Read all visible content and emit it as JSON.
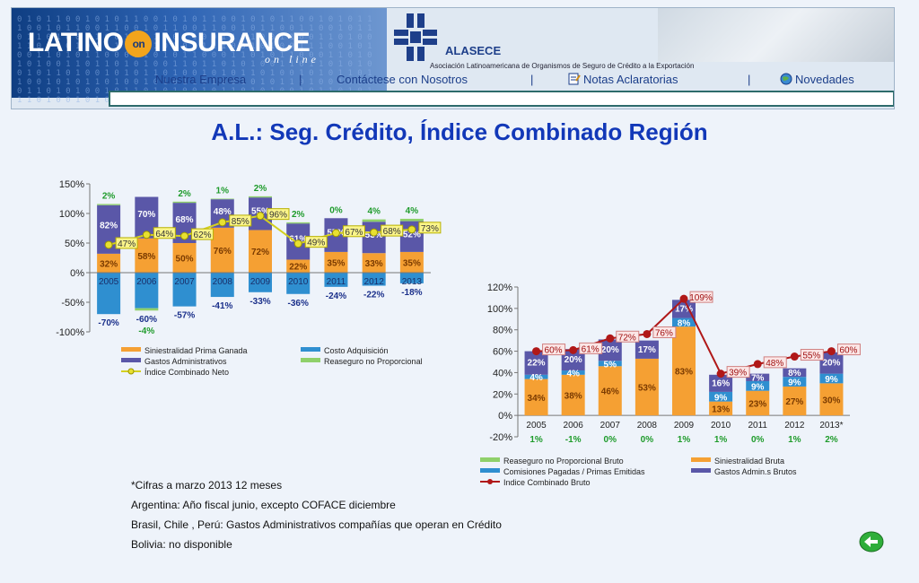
{
  "header": {
    "logo_main_1": "LATINO",
    "logo_on": "on",
    "logo_main_2": "INSURANCE",
    "logo_sub": "on line",
    "alasece_name": "ALASECE",
    "alasece_desc": "Asociación Latinoamericana de Organismos de Seguro de Crédito a la Exportación",
    "nav": [
      {
        "label": "Nuestra Empresa"
      },
      {
        "label": "Contáctese con Nosotros"
      },
      {
        "label": "Notas Aclaratorias"
      },
      {
        "label": "Novedades"
      }
    ],
    "nav_separator": "|"
  },
  "page_title": "A.L.: Seg. Crédito, Índice Combinado Región",
  "notes": [
    "*Cifras a marzo 2013 12 meses",
    "Argentina: Año fiscal junio, excepto COFACE diciembre",
    "Brasil, Chile , Perú: Gastos Administrativos  compañías que operan en Crédito",
    "Bolivia: no disponible"
  ],
  "colors": {
    "orange": "#f5a033",
    "purple": "#5a57a8",
    "blue": "#2f8fd0",
    "green": "#8fd06a",
    "line_left": "#d4d020",
    "line_right": "#b01818",
    "title": "#1238b8",
    "green_label": "#1e9b2b",
    "blue_label": "#1a2f8a"
  },
  "chart_data": [
    {
      "type": "bar",
      "stacked": true,
      "categories": [
        "2005",
        "2006",
        "2007",
        "2008",
        "2009",
        "2010",
        "2011",
        "2012",
        "2013"
      ],
      "ylim": [
        -100,
        150
      ],
      "yticks": [
        "150%",
        "100%",
        "50%",
        "0%",
        "-50%",
        "-100%"
      ],
      "ytick_values": [
        150,
        100,
        50,
        0,
        -50,
        -100
      ],
      "series": [
        {
          "name": "Siniestralidad Prima Ganada",
          "values": [
            32,
            58,
            50,
            76,
            72,
            22,
            35,
            33,
            35
          ],
          "labels": [
            "32%",
            "58%",
            "50%",
            "76%",
            "72%",
            "22%",
            "35%",
            "33%",
            "35%"
          ]
        },
        {
          "name": "Gastos Administrativos",
          "values": [
            82,
            70,
            68,
            48,
            55,
            61,
            57,
            53,
            52
          ],
          "labels": [
            "82%",
            "70%",
            "68%",
            "48%",
            "55%",
            "61%",
            "57%",
            "53%",
            "52%"
          ]
        },
        {
          "name": "Reaseguro no Proporcional",
          "values": [
            2,
            -4,
            2,
            1,
            2,
            2,
            0,
            4,
            4
          ],
          "labels": [
            "2%",
            "-4%",
            "2%",
            "1%",
            "2%",
            "2%",
            "0%",
            "4%",
            "4%"
          ]
        },
        {
          "name": "Costo Adquisición",
          "values": [
            -70,
            -60,
            -57,
            -41,
            -33,
            -36,
            -24,
            -22,
            -18
          ],
          "labels": [
            "-70%",
            "-60%",
            "-57%",
            "-41%",
            "-33%",
            "-36%",
            "-24%",
            "-22%",
            "-18%"
          ]
        },
        {
          "name": "Índice Combinado Neto",
          "type": "line",
          "values": [
            47,
            64,
            62,
            85,
            96,
            49,
            67,
            68,
            73
          ],
          "labels": [
            "47%",
            "64%",
            "62%",
            "85%",
            "96%",
            "49%",
            "67%",
            "68%",
            "73%"
          ]
        }
      ],
      "legend_labels": [
        "Siniestralidad Prima Ganada",
        "Costo Adquisición",
        "Gastos Administrativos",
        "Reaseguro no Proporcional",
        "Índice Combinado Neto"
      ]
    },
    {
      "type": "bar",
      "stacked": true,
      "categories": [
        "2005",
        "2006",
        "2007",
        "2008",
        "2009",
        "2010",
        "2011",
        "2012",
        "2013*"
      ],
      "ylim": [
        -20,
        120
      ],
      "yticks": [
        "120%",
        "100%",
        "80%",
        "60%",
        "40%",
        "20%",
        "0%",
        "-20%"
      ],
      "ytick_values": [
        120,
        100,
        80,
        60,
        40,
        20,
        0,
        -20
      ],
      "series": [
        {
          "name": "Siniestralidad Bruta",
          "values": [
            34,
            38,
            46,
            53,
            83,
            13,
            23,
            27,
            30
          ],
          "labels": [
            "34%",
            "38%",
            "46%",
            "53%",
            "83%",
            "13%",
            "23%",
            "27%",
            "30%"
          ]
        },
        {
          "name": "Comisiones Pagadas / Primas Emitidas",
          "values": [
            4,
            4,
            5,
            0,
            8,
            9,
            9,
            9,
            9
          ],
          "labels": [
            "4%",
            "4%",
            "5%",
            "",
            "8%",
            "9%",
            "9%",
            "9%",
            "9%"
          ]
        },
        {
          "name": "Gastos Admin.s Brutos",
          "values": [
            22,
            20,
            20,
            17,
            17,
            16,
            7,
            8,
            20
          ],
          "labels": [
            "22%",
            "20%",
            "20%",
            "17%",
            "17%",
            "16%",
            "7%",
            "8%",
            "20%"
          ]
        },
        {
          "name": "Reaseguro no Proporcional Bruto",
          "values": [
            1,
            -1,
            0,
            0,
            1,
            1,
            0,
            1,
            2
          ],
          "labels": [
            "1%",
            "-1%",
            "0%",
            "0%",
            "1%",
            "1%",
            "0%",
            "1%",
            "2%"
          ]
        },
        {
          "name": "Indice Combinado Bruto",
          "type": "line",
          "values": [
            60,
            61,
            72,
            76,
            109,
            39,
            48,
            55,
            60
          ],
          "labels": [
            "60%",
            "61%",
            "72%",
            "76%",
            "109%",
            "39%",
            "48%",
            "55%",
            "60%"
          ]
        }
      ],
      "legend_labels": [
        "Reaseguro no Proporcional Bruto",
        "Siniestralidad Bruta",
        "Comisiones Pagadas / Primas Emitidas",
        "Gastos Admin.s Brutos",
        "Indice Combinado Bruto"
      ]
    }
  ]
}
